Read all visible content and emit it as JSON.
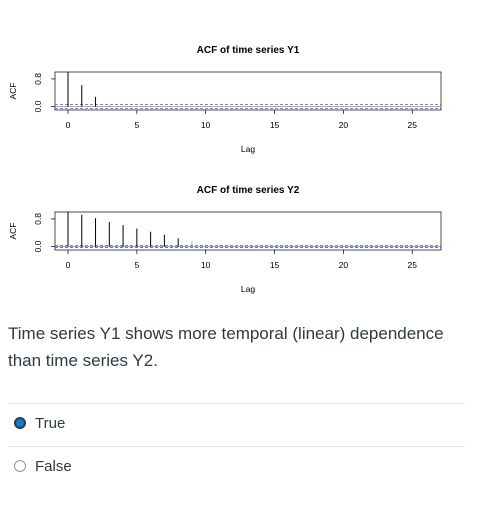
{
  "charts": [
    {
      "id": "y1",
      "title": "ACF of time series Y1",
      "xlabel": "Lag",
      "ylabel": "ACF",
      "x_ticks": [
        0,
        5,
        10,
        15,
        20,
        25
      ],
      "y_ticks": [
        0.0,
        0.8
      ]
    },
    {
      "id": "y2",
      "title": "ACF of time series Y2",
      "xlabel": "Lag",
      "ylabel": "ACF",
      "x_ticks": [
        0,
        5,
        10,
        15,
        20,
        25
      ],
      "y_ticks": [
        0.0,
        0.8
      ]
    }
  ],
  "chart_data": [
    {
      "type": "bar",
      "title": "ACF of time series Y1",
      "xlabel": "Lag",
      "ylabel": "ACF",
      "xlim": [
        0,
        28
      ],
      "ylim": [
        -0.1,
        1.0
      ],
      "confidence_band": 0.06,
      "x": [
        0,
        1,
        2,
        3,
        4,
        5,
        6,
        7,
        8,
        9,
        10,
        11,
        12,
        13,
        14,
        15,
        16,
        17,
        18,
        19,
        20,
        21,
        22,
        23,
        24,
        25,
        26,
        27,
        28
      ],
      "values": [
        1.0,
        0.62,
        0.28,
        0.04,
        -0.02,
        0.01,
        0.02,
        -0.01,
        0.01,
        0.0,
        0.02,
        -0.01,
        0.0,
        0.01,
        -0.02,
        0.03,
        0.02,
        0.0,
        0.01,
        0.03,
        0.02,
        0.04,
        0.03,
        0.02,
        0.0,
        0.01,
        -0.01,
        0.0,
        0.01
      ],
      "grid": false
    },
    {
      "type": "bar",
      "title": "ACF of time series Y2",
      "xlabel": "Lag",
      "ylabel": "ACF",
      "xlim": [
        0,
        28
      ],
      "ylim": [
        -0.1,
        1.0
      ],
      "confidence_band": 0.03,
      "x": [
        0,
        1,
        2,
        3,
        4,
        5,
        6,
        7,
        8,
        9,
        10,
        11,
        12,
        13,
        14,
        15,
        16,
        17,
        18,
        19,
        20,
        21,
        22,
        23,
        24,
        25,
        26,
        27,
        28
      ],
      "values": [
        1.0,
        0.92,
        0.82,
        0.71,
        0.62,
        0.52,
        0.43,
        0.34,
        0.24,
        0.15,
        0.07,
        0.04,
        0.02,
        0.01,
        0.0,
        -0.01,
        0.0,
        0.01,
        0.0,
        0.01,
        0.02,
        0.01,
        0.0,
        -0.01,
        0.01,
        0.02,
        0.01,
        0.0,
        0.01
      ],
      "grid": false
    }
  ],
  "question": {
    "text": "Time series Y1 shows more temporal (linear) dependence than time series Y2."
  },
  "answers": [
    {
      "label": "True",
      "selected": true
    },
    {
      "label": "False",
      "selected": false
    }
  ],
  "colors": {
    "accent": "#0b7fd1",
    "text": "#2d3b45",
    "divider": "#e4e6e8",
    "band": "#4a62d8"
  }
}
